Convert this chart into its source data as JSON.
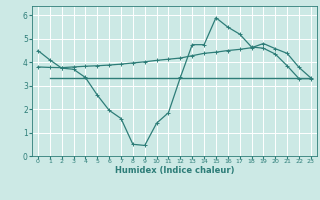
{
  "xlabel": "Humidex (Indice chaleur)",
  "bg_color": "#cce9e5",
  "grid_color": "#ffffff",
  "line_color": "#2d7d78",
  "xlim": [
    -0.5,
    23.5
  ],
  "ylim": [
    0,
    6.4
  ],
  "xticks": [
    0,
    1,
    2,
    3,
    4,
    5,
    6,
    7,
    8,
    9,
    10,
    11,
    12,
    13,
    14,
    15,
    16,
    17,
    18,
    19,
    20,
    21,
    22,
    23
  ],
  "yticks": [
    0,
    1,
    2,
    3,
    4,
    5,
    6
  ],
  "line1_x": [
    0,
    1,
    2,
    3,
    4,
    5,
    6,
    7,
    8,
    9,
    10,
    11,
    12,
    13,
    14,
    15,
    16,
    17,
    18,
    19,
    20,
    21,
    22,
    23
  ],
  "line1_y": [
    4.5,
    4.1,
    3.75,
    3.7,
    3.35,
    2.6,
    1.95,
    1.6,
    0.5,
    0.45,
    1.4,
    1.85,
    3.35,
    4.75,
    4.75,
    5.9,
    5.5,
    5.2,
    4.65,
    4.6,
    4.35,
    3.85,
    3.3,
    3.3
  ],
  "line2_x": [
    0,
    1,
    2,
    3,
    4,
    5,
    6,
    7,
    8,
    9,
    10,
    11,
    12,
    13,
    14,
    15,
    16,
    17,
    18,
    19,
    20,
    21,
    22,
    23
  ],
  "line2_y": [
    3.8,
    3.78,
    3.77,
    3.8,
    3.83,
    3.85,
    3.88,
    3.92,
    3.97,
    4.02,
    4.08,
    4.13,
    4.18,
    4.28,
    4.38,
    4.43,
    4.5,
    4.55,
    4.62,
    4.8,
    4.58,
    4.38,
    3.78,
    3.33
  ],
  "hline_y": 3.32,
  "hline_x_start": 1,
  "hline_x_end": 23
}
